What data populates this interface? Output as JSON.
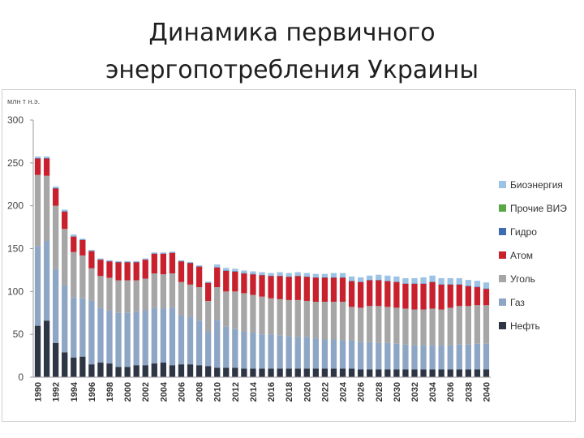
{
  "title_lines": [
    "Динамика первичного",
    "энергопотребления Украины"
  ],
  "chart_data": {
    "type": "bar",
    "stacked": true,
    "ylabel": "млн т н.э.",
    "ylim": [
      0,
      300
    ],
    "yticks": [
      0,
      50,
      100,
      150,
      200,
      250,
      300
    ],
    "legend_position": "right",
    "x": [
      1990,
      1991,
      1992,
      1993,
      1994,
      1995,
      1996,
      1997,
      1998,
      1999,
      2000,
      2001,
      2002,
      2003,
      2004,
      2005,
      2006,
      2007,
      2008,
      2009,
      2010,
      2011,
      2012,
      2013,
      2014,
      2015,
      2016,
      2017,
      2018,
      2019,
      2020,
      2021,
      2022,
      2023,
      2024,
      2025,
      2026,
      2027,
      2028,
      2029,
      2030,
      2031,
      2032,
      2033,
      2034,
      2035,
      2036,
      2037,
      2038,
      2039,
      2040
    ],
    "x_tick_labels": [
      "1990",
      "1992",
      "1994",
      "1996",
      "1998",
      "2000",
      "2002",
      "2004",
      "2006",
      "2008",
      "2010",
      "2012",
      "2014",
      "2016",
      "2018",
      "2020",
      "2022",
      "2024",
      "2026",
      "2028",
      "2030",
      "2032",
      "2034",
      "2036",
      "2038",
      "2040"
    ],
    "series": [
      {
        "name": "Нефть",
        "color": "#2e3645",
        "values": [
          60,
          66,
          40,
          29,
          23,
          24,
          15,
          17,
          16,
          12,
          12,
          14,
          14,
          16,
          17,
          14,
          15,
          15,
          14,
          13,
          11,
          11,
          11,
          10,
          10,
          10,
          10,
          10,
          10,
          10,
          10,
          10,
          10,
          10,
          10,
          10,
          9,
          9,
          9,
          9,
          9,
          9,
          9,
          9,
          9,
          9,
          9,
          9,
          9,
          9,
          9
        ]
      },
      {
        "name": "Газ",
        "color": "#8ea6c6",
        "values": [
          93,
          93,
          86,
          78,
          70,
          68,
          74,
          64,
          62,
          63,
          63,
          62,
          64,
          65,
          63,
          67,
          57,
          55,
          52,
          40,
          56,
          48,
          45,
          43,
          42,
          40,
          40,
          39,
          38,
          37,
          37,
          35,
          34,
          34,
          33,
          33,
          32,
          32,
          31,
          31,
          30,
          29,
          28,
          28,
          28,
          28,
          28,
          29,
          29,
          30,
          30
        ]
      },
      {
        "name": "Уголь",
        "color": "#a6a6a6",
        "values": [
          83,
          76,
          74,
          66,
          53,
          50,
          38,
          37,
          38,
          38,
          38,
          37,
          37,
          40,
          40,
          40,
          39,
          38,
          39,
          36,
          38,
          41,
          44,
          45,
          44,
          44,
          42,
          42,
          42,
          43,
          42,
          43,
          44,
          44,
          45,
          39,
          40,
          42,
          43,
          42,
          42,
          42,
          42,
          42,
          43,
          42,
          44,
          45,
          45,
          45,
          45
        ]
      },
      {
        "name": "Атом",
        "color": "#c8202c",
        "values": [
          19,
          20,
          20,
          20,
          18,
          18,
          20,
          19,
          19,
          21,
          21,
          21,
          22,
          23,
          24,
          24,
          24,
          25,
          24,
          21,
          23,
          24,
          23,
          23,
          24,
          25,
          26,
          27,
          27,
          28,
          28,
          28,
          28,
          28,
          28,
          30,
          30,
          30,
          30,
          30,
          30,
          29,
          30,
          30,
          31,
          29,
          27,
          25,
          23,
          21,
          19
        ]
      },
      {
        "name": "Гидро",
        "color": "#3d6cb3",
        "values": [
          0.5,
          0.5,
          0.5,
          0.5,
          0.5,
          0.5,
          0.5,
          0.5,
          0.5,
          0.5,
          0.5,
          0.5,
          0.5,
          0.5,
          0.5,
          0.5,
          0.5,
          0.5,
          0.5,
          0.5,
          0.5,
          0.5,
          0.5,
          0.5,
          0.5,
          0.5,
          0.5,
          0.5,
          0.5,
          0.5,
          0.5,
          0.5,
          0.5,
          0.5,
          0.5,
          0.5,
          0.5,
          0.5,
          0.5,
          0.5,
          0.5,
          0.5,
          0.5,
          0.5,
          0.5,
          0.5,
          0.5,
          0.5,
          0.5,
          0.5,
          0.5
        ]
      },
      {
        "name": "Прочие ВИЭ",
        "color": "#57a845",
        "values": [
          0,
          0,
          0,
          0,
          0,
          0,
          0,
          0,
          0,
          0,
          0,
          0,
          0,
          0,
          0,
          0,
          0,
          0,
          0,
          0,
          0,
          0,
          0,
          0,
          0,
          0,
          0,
          0,
          0,
          0,
          0,
          0,
          0,
          0,
          0,
          0,
          0,
          0,
          0,
          0,
          0,
          0,
          0,
          0,
          0,
          0,
          0,
          0,
          0,
          0,
          0
        ]
      },
      {
        "name": "Биоэнергия",
        "color": "#9cc3e4",
        "values": [
          2,
          2,
          2,
          2,
          2,
          1,
          1,
          1,
          1,
          1,
          1,
          1,
          1,
          1,
          1,
          1,
          1,
          1,
          1,
          1,
          3,
          3,
          3,
          3,
          3,
          3,
          3,
          4,
          4,
          4,
          4,
          4,
          4,
          5,
          5,
          5,
          5,
          5,
          6,
          6,
          6,
          6,
          6,
          7,
          7,
          7,
          7,
          7,
          7,
          7,
          7
        ]
      }
    ],
    "legend_order": [
      "Биоэнергия",
      "Прочие ВИЭ",
      "Гидро",
      "Атом",
      "Уголь",
      "Газ",
      "Нефть"
    ]
  }
}
